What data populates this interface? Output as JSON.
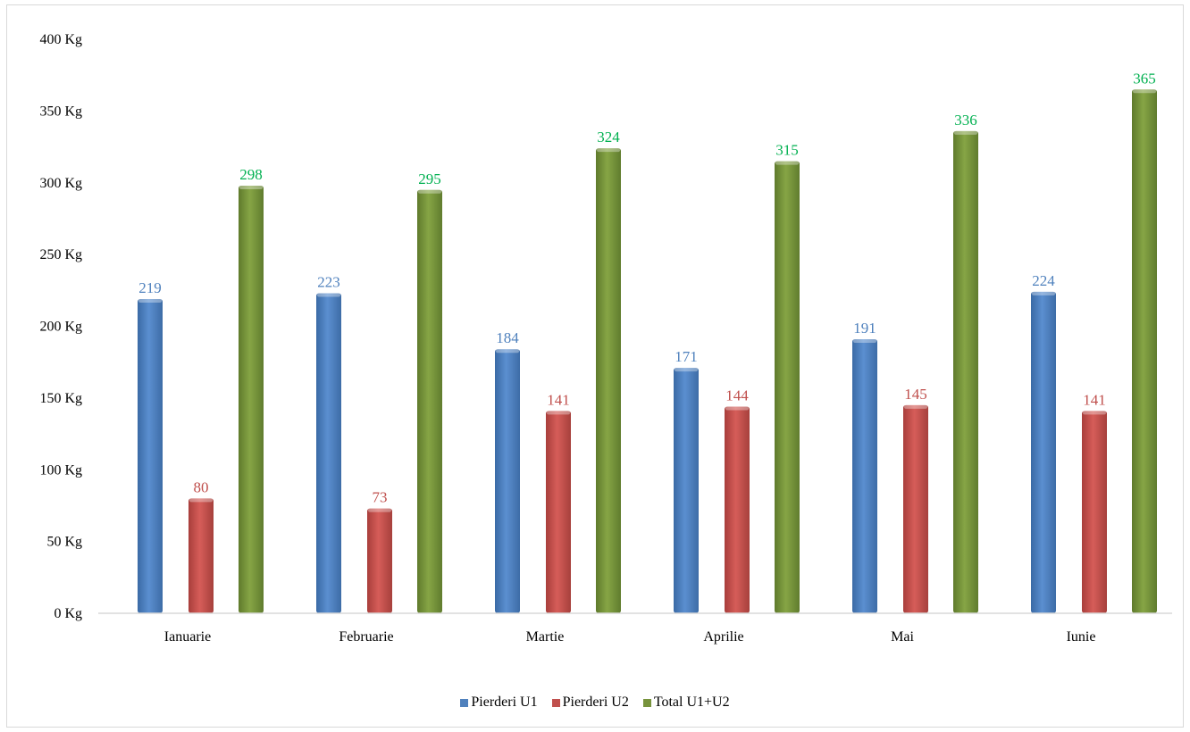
{
  "chart_data": {
    "type": "bar",
    "title": "",
    "xlabel": "",
    "ylabel": "",
    "categories": [
      "Ianuarie",
      "Februarie",
      "Martie",
      "Aprilie",
      "Mai",
      "Iunie"
    ],
    "series": [
      {
        "name": "Pierderi U1",
        "color": "#4f81bd",
        "label_color": "#4f81bd",
        "values": [
          219,
          223,
          184,
          171,
          191,
          224
        ]
      },
      {
        "name": "Pierderi U2",
        "color": "#c0504d",
        "label_color": "#c0504d",
        "values": [
          80,
          73,
          141,
          144,
          145,
          141
        ]
      },
      {
        "name": "Total U1+U2",
        "color": "#77933c",
        "label_color": "#00b050",
        "values": [
          298,
          295,
          324,
          315,
          336,
          365
        ]
      }
    ],
    "ylim": [
      0,
      400
    ],
    "yticks": [
      0,
      50,
      100,
      150,
      200,
      250,
      300,
      350,
      400
    ],
    "ytick_labels": [
      "0 Kg",
      "50 Kg",
      "100 Kg",
      "150 Kg",
      "200 Kg",
      "250 Kg",
      "300 Kg",
      "350 Kg",
      "400 Kg"
    ],
    "grid": false,
    "legend_position": "bottom"
  }
}
